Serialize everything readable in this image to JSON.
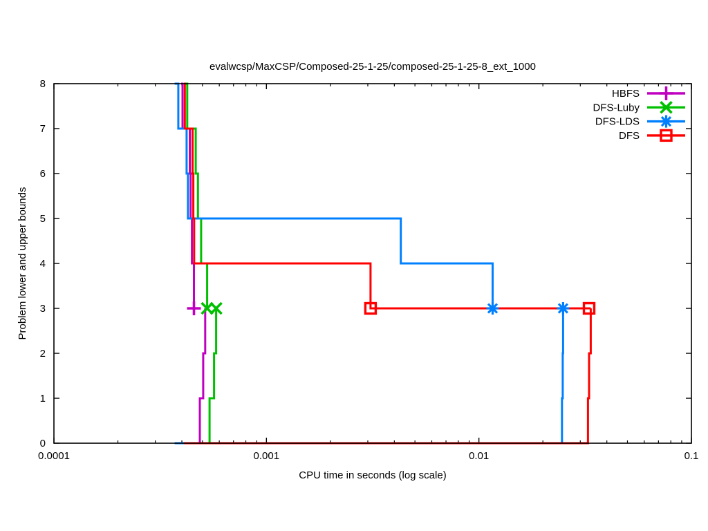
{
  "chart_data": {
    "type": "line",
    "title": "evalwcsp/MaxCSP/Composed-25-1-25/composed-25-1-25-8_ext_1000",
    "xlabel": "CPU time in seconds (log scale)",
    "ylabel": "Problem lower and upper bounds",
    "x_scale": "log",
    "xlim": [
      0.0001,
      0.1
    ],
    "ylim": [
      0,
      8
    ],
    "x_ticks": [
      "0.0001",
      "0.001",
      "0.01",
      "0.1"
    ],
    "y_ticks": [
      "0",
      "1",
      "2",
      "3",
      "4",
      "5",
      "6",
      "7",
      "8"
    ],
    "grid": "off",
    "legend_position": "top-right-inside",
    "background_color": "#ffffff",
    "axis_color": "#000000",
    "series": [
      {
        "name": "HBFS",
        "color": "#c000c0",
        "marker": "plus",
        "upper_bound_steps": [
          [
            0.000397,
            8
          ],
          [
            0.000403,
            7
          ],
          [
            0.000436,
            6
          ],
          [
            0.00044,
            5
          ],
          [
            0.000446,
            4
          ],
          [
            0.000456,
            3
          ]
        ],
        "lower_bound_steps": [
          [
            0.000397,
            0
          ],
          [
            0.000486,
            1
          ],
          [
            0.000504,
            2
          ],
          [
            0.000515,
            3
          ]
        ],
        "markers_at": [
          [
            0.000456,
            3
          ]
        ]
      },
      {
        "name": "DFS-Luby",
        "color": "#00c000",
        "marker": "cross",
        "upper_bound_steps": [
          [
            0.000415,
            8
          ],
          [
            0.000424,
            7
          ],
          [
            0.000465,
            6
          ],
          [
            0.000476,
            5
          ],
          [
            0.000493,
            4
          ],
          [
            0.000526,
            3
          ]
        ],
        "lower_bound_steps": [
          [
            0.000415,
            0
          ],
          [
            0.00054,
            1
          ],
          [
            0.000567,
            2
          ],
          [
            0.00058,
            3
          ]
        ],
        "markers_at": [
          [
            0.000526,
            3
          ],
          [
            0.00058,
            3
          ]
        ]
      },
      {
        "name": "DFS-LDS",
        "color": "#0080ff",
        "marker": "asterisk",
        "upper_bound_steps": [
          [
            0.00037,
            8
          ],
          [
            0.000385,
            7
          ],
          [
            0.000421,
            6
          ],
          [
            0.000427,
            5
          ],
          [
            0.00429,
            4
          ],
          [
            0.0116,
            3
          ],
          [
            0.0249,
            3
          ]
        ],
        "lower_bound_steps": [
          [
            0.00037,
            0
          ],
          [
            0.0246,
            1
          ],
          [
            0.0248,
            2
          ],
          [
            0.0249,
            3
          ]
        ],
        "markers_at": [
          [
            0.0116,
            3
          ],
          [
            0.0249,
            3
          ]
        ]
      },
      {
        "name": "DFS",
        "color": "#ff0000",
        "marker": "square",
        "upper_bound_steps": [
          [
            0.000409,
            8
          ],
          [
            0.000413,
            7
          ],
          [
            0.000449,
            6
          ],
          [
            0.000453,
            5
          ],
          [
            0.000457,
            4
          ],
          [
            0.00309,
            3
          ],
          [
            0.0336,
            3
          ]
        ],
        "lower_bound_steps": [
          [
            0.000409,
            0
          ],
          [
            0.0326,
            1
          ],
          [
            0.033,
            2
          ],
          [
            0.0336,
            3
          ]
        ],
        "markers_at": [
          [
            0.00309,
            3
          ],
          [
            0.033,
            3
          ]
        ]
      }
    ]
  }
}
